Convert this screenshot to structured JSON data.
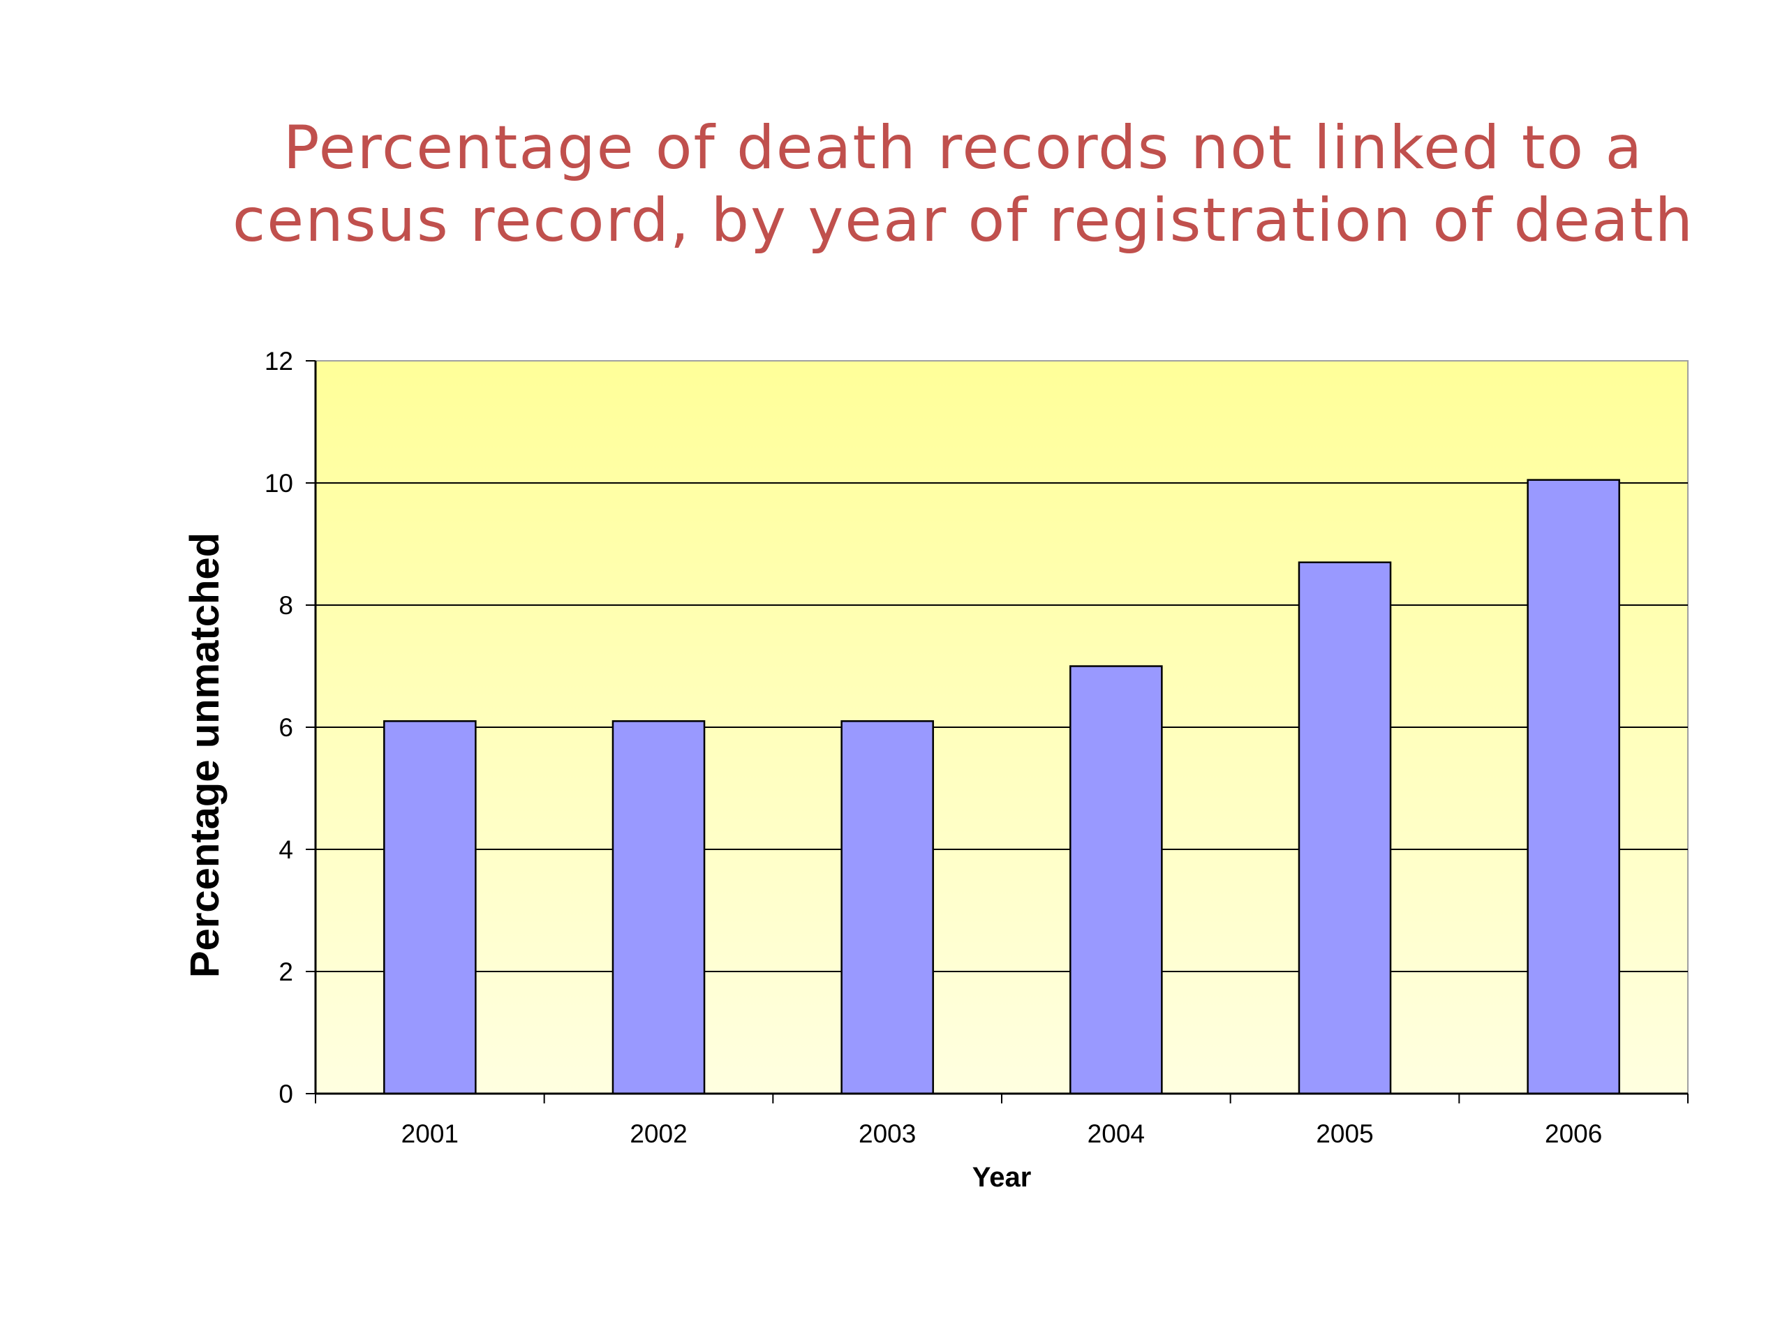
{
  "title": {
    "line1": "Percentage of death records not linked to a",
    "line2": "census record, by year of registration of death"
  },
  "chart_data": {
    "type": "bar",
    "categories": [
      "2001",
      "2002",
      "2003",
      "2004",
      "2005",
      "2006"
    ],
    "values": [
      6.1,
      6.1,
      6.1,
      7.0,
      8.7,
      10.05
    ],
    "title": "Percentage of death records not linked to a census record, by year of registration of death",
    "xlabel": "Year",
    "ylabel": "Percentage unmatched",
    "ylim": [
      0,
      12
    ],
    "yticks": [
      "0",
      "2",
      "4",
      "6",
      "8",
      "10",
      "12"
    ],
    "grid": true,
    "legend": "none"
  },
  "colors": {
    "title": "#c0504d",
    "bar_fill": "#9999ff",
    "bar_stroke": "#000000",
    "plot_bg_top": "#ffff99",
    "plot_bg_bottom": "#ffffe0",
    "gridline": "#000000",
    "axis": "#000000"
  }
}
